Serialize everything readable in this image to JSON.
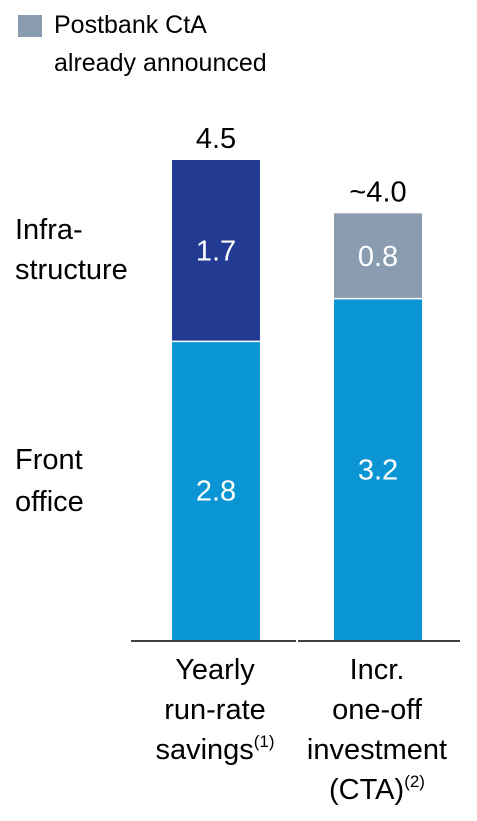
{
  "legend": {
    "swatch_color": "#8A9CB0",
    "line1": "Postbank CtA",
    "line2": "already announced"
  },
  "row_labels": {
    "infrastructure": [
      "Infra-",
      "structure"
    ],
    "front_office": [
      "Front",
      "office"
    ]
  },
  "categories": [
    {
      "lines": [
        "Yearly",
        "run-rate",
        "savings"
      ],
      "footnote": "(1)"
    },
    {
      "lines": [
        "Incr.",
        "one-off",
        "investment",
        "(CTA)"
      ],
      "footnote": "(2)"
    }
  ],
  "chart_data": {
    "type": "bar",
    "stacked": true,
    "categories": [
      "Yearly run-rate savings(1)",
      "Incr. one-off investment (CTA)(2)"
    ],
    "series": [
      {
        "name": "Front office",
        "values": [
          2.8,
          3.2
        ],
        "colors": [
          "#0A96D4",
          "#0A96D4"
        ]
      },
      {
        "name": "Infrastructure",
        "values": [
          1.7,
          0.8
        ],
        "colors": [
          "#233A93",
          "#8A9CB0"
        ]
      }
    ],
    "totals": [
      "4.5",
      "~4.0"
    ],
    "ylim": [
      0,
      4.5
    ],
    "grid": false
  }
}
